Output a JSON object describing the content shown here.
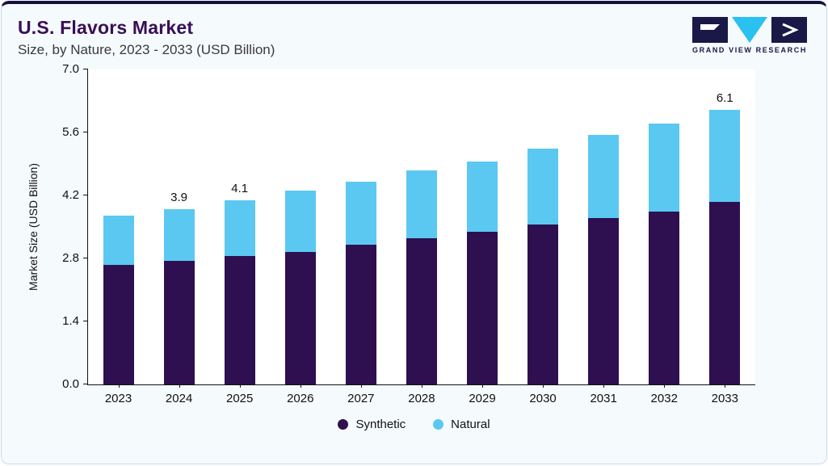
{
  "header": {
    "title": "U.S. Flavors Market",
    "subtitle": "Size, by Nature, 2023 - 2033 (USD Billion)",
    "logo_text": "GRAND VIEW RESEARCH"
  },
  "colors": {
    "synthetic": "#2e0f50",
    "natural": "#5bc8f2",
    "title": "#3a0e56",
    "accent_navy": "#191847",
    "accent_cyan": "#29c1ef",
    "card_background": "#f5fafd",
    "plot_background": "#ffffff"
  },
  "chart_data": {
    "type": "bar",
    "stacked": true,
    "title": "U.S. Flavors Market Size, by Nature, 2023 - 2033 (USD Billion)",
    "xlabel": "",
    "ylabel": "Market Size (USD Billion)",
    "ylim": [
      0,
      7.0
    ],
    "yticks": [
      0.0,
      1.4,
      2.8,
      4.2,
      5.6,
      7.0
    ],
    "grid": false,
    "legend_position": "bottom",
    "categories": [
      "2023",
      "2024",
      "2025",
      "2026",
      "2027",
      "2028",
      "2029",
      "2030",
      "2031",
      "2032",
      "2033"
    ],
    "series": [
      {
        "name": "Synthetic",
        "color": "#2e0f50",
        "values": [
          2.65,
          2.75,
          2.85,
          2.95,
          3.1,
          3.25,
          3.4,
          3.55,
          3.7,
          3.85,
          4.05
        ]
      },
      {
        "name": "Natural",
        "color": "#5bc8f2",
        "values": [
          1.1,
          1.15,
          1.25,
          1.35,
          1.4,
          1.5,
          1.55,
          1.7,
          1.85,
          1.95,
          2.05
        ]
      }
    ],
    "totals": [
      3.75,
      3.9,
      4.1,
      4.3,
      4.5,
      4.75,
      4.95,
      5.25,
      5.55,
      5.8,
      6.1
    ],
    "bar_labels": {
      "2024": "3.9",
      "2025": "4.1",
      "2033": "6.1"
    }
  }
}
